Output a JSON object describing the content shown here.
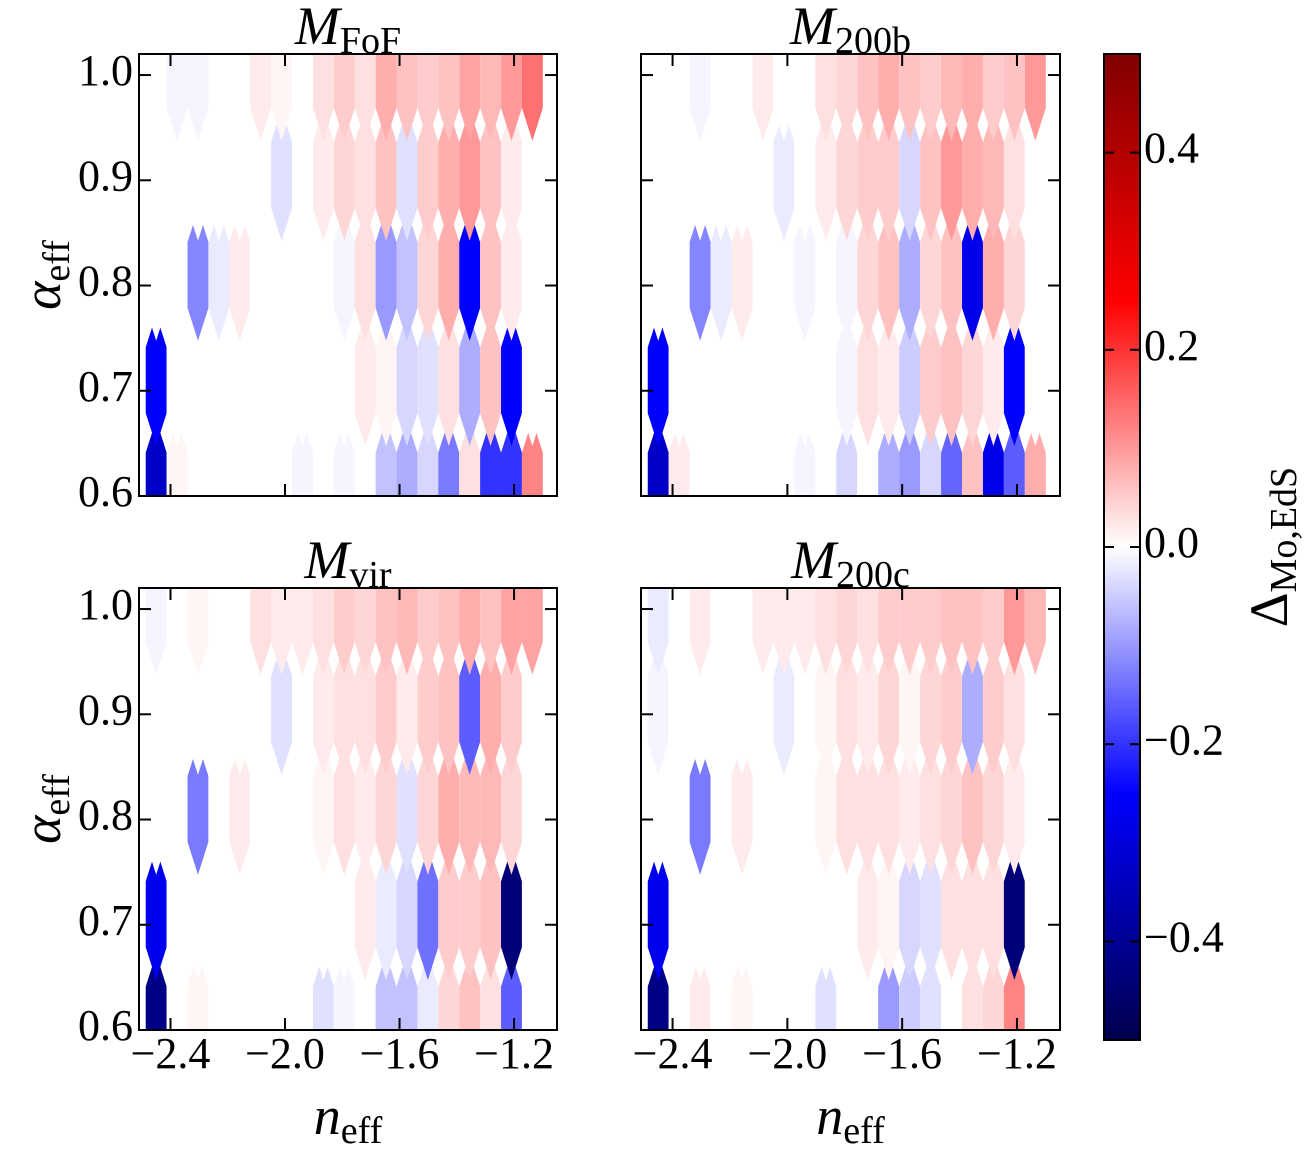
{
  "chart_data": [
    {
      "type": "hexbin",
      "title": "M",
      "title_sub": "FoF",
      "ylabel": "α",
      "ylabel_sub": "eff",
      "xlim": [
        -2.51,
        -1.05
      ],
      "ylim": [
        0.6,
        1.02
      ],
      "xticks": [
        {
          "value": -2.4,
          "label": "−2.4"
        },
        {
          "value": -2.0,
          "label": "−2.0"
        },
        {
          "value": -1.6,
          "label": "−1.6"
        },
        {
          "value": -1.2,
          "label": "−1.2"
        }
      ],
      "yticks": [
        0.6,
        0.7,
        0.8,
        0.9,
        {
          "value": 1.0,
          "label": "1.0"
        }
      ],
      "x": [
        -2.45,
        -2.377,
        -2.304,
        -2.231,
        -2.158,
        -2.085,
        -2.012,
        -1.939,
        -1.866,
        -1.793,
        -1.72,
        -1.647,
        -1.574,
        -1.501,
        -1.428,
        -1.355,
        -1.282,
        -1.209,
        -1.136
      ],
      "y": [
        0.61,
        0.71,
        0.81,
        0.905,
        1.0
      ],
      "values": [
        [
          -0.33,
          0.01,
          0.0,
          0.0,
          0.0,
          0.0,
          0.0,
          -0.01,
          0.0,
          -0.01,
          0.0,
          -0.06,
          -0.08,
          -0.04,
          -0.13,
          0.03,
          -0.2,
          -0.2,
          0.12
        ],
        [
          -0.25,
          0.0,
          0.0,
          0.0,
          0.0,
          0.0,
          0.0,
          0.0,
          0.0,
          0.0,
          0.02,
          0.01,
          -0.04,
          -0.03,
          0.03,
          -0.08,
          0.06,
          -0.25,
          0.0
        ],
        [
          0.0,
          0.0,
          -0.12,
          -0.02,
          0.02,
          0.0,
          0.0,
          0.0,
          0.0,
          -0.01,
          0.03,
          -0.1,
          -0.06,
          0.04,
          0.08,
          -0.25,
          0.06,
          0.02,
          0.0
        ],
        [
          0.0,
          0.0,
          0.0,
          0.0,
          0.0,
          0.0,
          -0.03,
          0.0,
          0.02,
          0.04,
          0.03,
          0.06,
          -0.03,
          0.05,
          0.08,
          0.1,
          0.06,
          0.02,
          0.0
        ],
        [
          0.0,
          -0.01,
          -0.01,
          0.0,
          0.0,
          0.02,
          0.01,
          0.0,
          0.03,
          0.05,
          0.03,
          0.08,
          0.06,
          0.05,
          0.06,
          0.09,
          0.07,
          0.1,
          0.14
        ]
      ]
    },
    {
      "type": "hexbin",
      "title": "M",
      "title_sub": "200b",
      "xlim": [
        -2.51,
        -1.05
      ],
      "ylim": [
        0.6,
        1.02
      ],
      "xticks": [
        {
          "value": -2.4,
          "label": "−2.4"
        },
        {
          "value": -2.0,
          "label": "−2.0"
        },
        {
          "value": -1.6,
          "label": "−1.6"
        },
        {
          "value": -1.2,
          "label": "−1.2"
        }
      ],
      "yticks": [
        0.6,
        0.7,
        0.8,
        0.9,
        {
          "value": 1.0,
          "label": "1.0"
        }
      ],
      "x": [
        -2.45,
        -2.377,
        -2.304,
        -2.231,
        -2.158,
        -2.085,
        -2.012,
        -1.939,
        -1.866,
        -1.793,
        -1.72,
        -1.647,
        -1.574,
        -1.501,
        -1.428,
        -1.355,
        -1.282,
        -1.209,
        -1.136
      ],
      "y": [
        0.61,
        0.71,
        0.81,
        0.905,
        1.0
      ],
      "values": [
        [
          -0.33,
          0.02,
          0.0,
          0.0,
          0.0,
          0.0,
          0.0,
          -0.01,
          0.0,
          -0.04,
          0.0,
          -0.08,
          -0.1,
          -0.04,
          -0.15,
          0.06,
          -0.28,
          -0.16,
          0.08
        ],
        [
          -0.25,
          0.0,
          0.0,
          0.0,
          0.0,
          0.0,
          0.0,
          0.0,
          0.0,
          -0.01,
          0.03,
          0.02,
          -0.05,
          0.05,
          0.06,
          0.04,
          0.02,
          -0.25,
          0.0
        ],
        [
          0.0,
          0.0,
          -0.12,
          -0.02,
          0.02,
          0.0,
          0.0,
          -0.01,
          0.0,
          -0.01,
          0.04,
          0.06,
          -0.08,
          0.04,
          0.06,
          -0.28,
          0.08,
          0.04,
          0.0
        ],
        [
          0.0,
          0.0,
          0.0,
          0.0,
          0.0,
          0.0,
          -0.02,
          0.0,
          0.02,
          0.04,
          0.05,
          0.05,
          -0.04,
          0.06,
          0.1,
          0.08,
          0.07,
          0.03,
          0.0
        ],
        [
          0.0,
          0.0,
          -0.01,
          0.0,
          0.0,
          0.02,
          0.0,
          0.0,
          0.03,
          0.04,
          0.06,
          0.08,
          0.06,
          0.05,
          0.07,
          0.08,
          0.05,
          0.06,
          0.1
        ]
      ]
    },
    {
      "type": "hexbin",
      "title": "M",
      "title_sub": "vir",
      "ylabel": "α",
      "ylabel_sub": "eff",
      "xlabel": "n",
      "xlabel_sub": "eff",
      "xlim": [
        -2.51,
        -1.05
      ],
      "ylim": [
        0.6,
        1.02
      ],
      "xticks": [
        {
          "value": -2.4,
          "label": "−2.4"
        },
        {
          "value": -2.0,
          "label": "−2.0"
        },
        {
          "value": -1.6,
          "label": "−1.6"
        },
        {
          "value": -1.2,
          "label": "−1.2"
        }
      ],
      "yticks": [
        0.6,
        0.7,
        0.8,
        0.9,
        {
          "value": 1.0,
          "label": "1.0"
        }
      ],
      "x": [
        -2.45,
        -2.377,
        -2.304,
        -2.231,
        -2.158,
        -2.085,
        -2.012,
        -1.939,
        -1.866,
        -1.793,
        -1.72,
        -1.647,
        -1.574,
        -1.501,
        -1.428,
        -1.355,
        -1.282,
        -1.209,
        -1.136
      ],
      "y": [
        0.61,
        0.71,
        0.81,
        0.905,
        1.0
      ],
      "values": [
        [
          -0.42,
          0.0,
          0.01,
          0.0,
          0.0,
          0.0,
          0.0,
          0.0,
          -0.03,
          -0.01,
          0.0,
          -0.06,
          -0.06,
          -0.02,
          0.04,
          0.06,
          0.03,
          -0.16,
          0.0
        ],
        [
          -0.27,
          0.0,
          0.0,
          0.0,
          0.0,
          0.0,
          0.0,
          0.0,
          0.0,
          0.0,
          0.02,
          -0.02,
          -0.04,
          -0.14,
          0.05,
          0.05,
          0.06,
          -0.44,
          0.0
        ],
        [
          0.0,
          0.0,
          -0.13,
          0.0,
          0.02,
          0.0,
          0.0,
          0.0,
          0.01,
          0.03,
          0.02,
          0.04,
          -0.03,
          0.04,
          0.08,
          0.07,
          0.07,
          0.04,
          0.0
        ],
        [
          0.0,
          0.0,
          0.0,
          0.0,
          0.0,
          0.0,
          -0.03,
          0.0,
          0.02,
          0.03,
          0.03,
          0.05,
          0.02,
          0.05,
          0.06,
          -0.16,
          0.08,
          0.05,
          0.0
        ],
        [
          -0.01,
          0.0,
          0.01,
          0.0,
          0.0,
          0.03,
          0.02,
          0.02,
          0.03,
          0.05,
          0.04,
          0.06,
          0.07,
          0.05,
          0.06,
          0.08,
          0.06,
          0.09,
          0.09
        ]
      ]
    },
    {
      "type": "hexbin",
      "title": "M",
      "title_sub": "200c",
      "xlabel": "n",
      "xlabel_sub": "eff",
      "xlim": [
        -2.51,
        -1.05
      ],
      "ylim": [
        0.6,
        1.02
      ],
      "xticks": [
        {
          "value": -2.4,
          "label": "−2.4"
        },
        {
          "value": -2.0,
          "label": "−2.0"
        },
        {
          "value": -1.6,
          "label": "−1.6"
        },
        {
          "value": -1.2,
          "label": "−1.2"
        }
      ],
      "yticks": [
        0.6,
        0.7,
        0.8,
        0.9,
        {
          "value": 1.0,
          "label": "1.0"
        }
      ],
      "x": [
        -2.45,
        -2.377,
        -2.304,
        -2.231,
        -2.158,
        -2.085,
        -2.012,
        -1.939,
        -1.866,
        -1.793,
        -1.72,
        -1.647,
        -1.574,
        -1.501,
        -1.428,
        -1.355,
        -1.282,
        -1.209,
        -1.136
      ],
      "y": [
        0.61,
        0.71,
        0.81,
        0.905,
        1.0
      ],
      "values": [
        [
          -0.42,
          0.0,
          0.02,
          0.0,
          0.01,
          0.0,
          0.0,
          0.0,
          -0.03,
          0.0,
          0.0,
          -0.1,
          -0.05,
          -0.03,
          0.0,
          0.03,
          0.04,
          0.12,
          0.0
        ],
        [
          -0.27,
          0.0,
          0.0,
          0.0,
          0.0,
          0.0,
          0.0,
          0.0,
          0.0,
          0.0,
          0.02,
          0.01,
          -0.04,
          -0.03,
          0.03,
          0.03,
          0.03,
          -0.44,
          0.0
        ],
        [
          0.0,
          0.0,
          -0.13,
          0.0,
          0.02,
          0.0,
          0.0,
          0.0,
          0.01,
          0.03,
          0.03,
          0.03,
          0.02,
          0.03,
          0.04,
          0.06,
          0.04,
          0.02,
          0.0
        ],
        [
          -0.01,
          0.0,
          0.0,
          0.0,
          0.0,
          0.0,
          -0.02,
          0.0,
          0.01,
          0.03,
          0.02,
          0.04,
          0.01,
          0.04,
          0.05,
          -0.08,
          0.05,
          0.03,
          0.0
        ],
        [
          -0.02,
          0.0,
          0.02,
          0.0,
          0.0,
          0.02,
          0.02,
          0.02,
          0.03,
          0.04,
          0.03,
          0.05,
          0.05,
          0.05,
          0.06,
          0.06,
          0.05,
          0.1,
          0.07
        ]
      ]
    }
  ],
  "colorbar": {
    "colormap": "seismic",
    "label": "Δ",
    "label_sub": "Mo,EdS",
    "lim": [
      -0.5,
      0.5
    ],
    "ticks": [
      {
        "value": -0.4,
        "label": "−0.4"
      },
      {
        "value": -0.2,
        "label": "−0.2"
      },
      {
        "value": 0.0,
        "label": "0.0"
      },
      0.2,
      0.4
    ]
  }
}
